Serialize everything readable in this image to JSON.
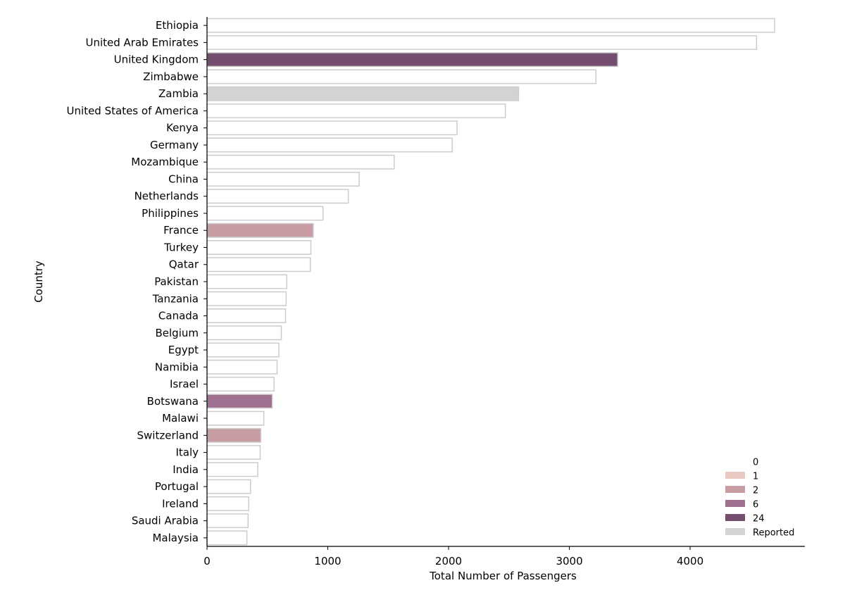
{
  "chart_data": {
    "type": "bar",
    "orientation": "horizontal",
    "title": "",
    "xlabel": "Total Number of Passengers",
    "ylabel": "Country",
    "xlim": [
      0,
      4950
    ],
    "xticks": [
      0,
      1000,
      2000,
      3000,
      4000
    ],
    "grid": false,
    "legend_placement": "lower-right",
    "legend": [
      {
        "label": "0",
        "color": "#ffffff"
      },
      {
        "label": "1",
        "color": "#ebc9c3"
      },
      {
        "label": "2",
        "color": "#c79da3"
      },
      {
        "label": "6",
        "color": "#a06e8e"
      },
      {
        "label": "24",
        "color": "#744d6f"
      },
      {
        "label": "Reported",
        "color": "#d3d3d3"
      }
    ],
    "categories": [
      "Ethiopia",
      "United Arab Emirates",
      "United Kingdom",
      "Zimbabwe",
      "Zambia",
      "United States of America",
      "Kenya",
      "Germany",
      "Mozambique",
      "China",
      "Netherlands",
      "Philippines",
      "France",
      "Turkey",
      "Qatar",
      "Pakistan",
      "Tanzania",
      "Canada",
      "Belgium",
      "Egypt",
      "Namibia",
      "Israel",
      "Botswana",
      "Malawi",
      "Switzerland",
      "Italy",
      "India",
      "Portugal",
      "Ireland",
      "Saudi Arabia",
      "Malaysia"
    ],
    "values": [
      4700,
      4550,
      3400,
      3220,
      2580,
      2470,
      2070,
      2030,
      1550,
      1260,
      1170,
      960,
      880,
      860,
      855,
      660,
      655,
      650,
      615,
      595,
      580,
      555,
      540,
      470,
      445,
      440,
      420,
      360,
      345,
      340,
      330
    ],
    "series_colors": [
      "#ffffff",
      "#ffffff",
      "#744d6f",
      "#ffffff",
      "#d3d3d3",
      "#ffffff",
      "#ffffff",
      "#ffffff",
      "#ffffff",
      "#ffffff",
      "#ffffff",
      "#ffffff",
      "#c79da3",
      "#ffffff",
      "#ffffff",
      "#ffffff",
      "#ffffff",
      "#ffffff",
      "#ffffff",
      "#ffffff",
      "#ffffff",
      "#ffffff",
      "#a06e8e",
      "#ffffff",
      "#c79da3",
      "#ffffff",
      "#ffffff",
      "#ffffff",
      "#ffffff",
      "#ffffff",
      "#ffffff"
    ],
    "bar_edge_color": "#cccccc"
  }
}
